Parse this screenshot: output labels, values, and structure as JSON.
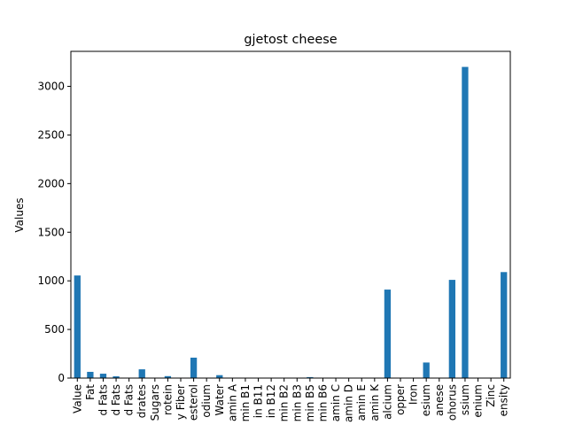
{
  "chart_data": {
    "type": "bar",
    "title": "gjetost cheese",
    "ylabel": "Values",
    "categories": [
      "Value",
      "Fat",
      "d Fats",
      "d Fats",
      "d Fats",
      "drates",
      "Sugars",
      "rotein",
      "y Fiber",
      "esterol",
      "odium",
      "Water",
      "amin A",
      "min B1",
      "in B11",
      "in B12",
      "min B2",
      "min B3",
      "min B5",
      "min B6",
      "amin C",
      "amin D",
      "amin E",
      "amin K",
      "alcium",
      "opper",
      "Iron",
      "esium",
      "anese",
      "ohorus",
      "ssium",
      "enium",
      "Zinc",
      "ensity"
    ],
    "values": [
      1055,
      64,
      45,
      18,
      2,
      90,
      0,
      20,
      0,
      210,
      2,
      30,
      1,
      0,
      0,
      1,
      1,
      1,
      10,
      0,
      0,
      0,
      1,
      0,
      910,
      1,
      1,
      160,
      0,
      1010,
      3200,
      0,
      1,
      1090
    ],
    "color": "#1f77b4",
    "ylim": [
      0,
      3360
    ],
    "yticks": [
      0,
      500,
      1000,
      1500,
      2000,
      2500,
      3000
    ],
    "grid": false
  }
}
